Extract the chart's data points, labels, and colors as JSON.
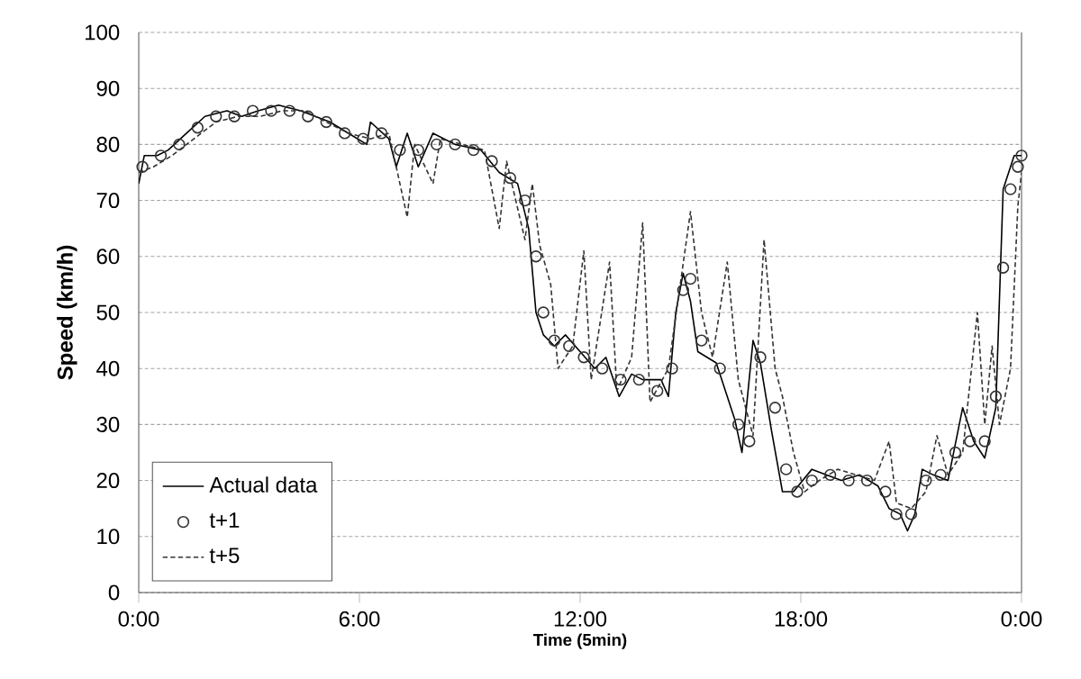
{
  "chart_data": {
    "type": "line",
    "xlabel": "Time (5min)",
    "ylabel": "Speed (km/h)",
    "xlim": [
      0,
      24
    ],
    "ylim": [
      0,
      100
    ],
    "xticks": [
      {
        "value": 0,
        "label": "0:00"
      },
      {
        "value": 6,
        "label": "6:00"
      },
      {
        "value": 12,
        "label": "12:00"
      },
      {
        "value": 18,
        "label": "18:00"
      },
      {
        "value": 24,
        "label": "0:00"
      }
    ],
    "yticks": [
      0,
      10,
      20,
      30,
      40,
      50,
      60,
      70,
      80,
      90,
      100
    ],
    "grid": "y",
    "legend": "bottom left",
    "series": [
      {
        "name": "Actual data",
        "color": "#000000",
        "line_style": "solid",
        "marker": "none",
        "x": [
          0,
          0.15,
          0.5,
          0.8,
          1.3,
          1.8,
          2.4,
          2.8,
          3.25,
          3.8,
          4.4,
          4.8,
          5.2,
          5.7,
          6.2,
          6.3,
          6.8,
          7.0,
          7.3,
          7.6,
          8.0,
          8.6,
          9.3,
          9.8,
          10.3,
          10.6,
          10.8,
          11.0,
          11.3,
          11.6,
          12.0,
          12.4,
          12.7,
          13.06,
          13.4,
          13.7,
          14.2,
          14.4,
          14.6,
          14.8,
          15.0,
          15.2,
          15.7,
          16.2,
          16.4,
          16.7,
          16.9,
          17.2,
          17.5,
          17.8,
          18.3,
          18.7,
          19.1,
          19.6,
          20.1,
          20.4,
          20.7,
          20.9,
          21.1,
          21.3,
          21.6,
          22.0,
          22.4,
          22.7,
          23.0,
          23.3,
          23.5,
          23.8,
          24
        ],
        "values": [
          73,
          78,
          78,
          79,
          82,
          85,
          86,
          85,
          86,
          87,
          86,
          85,
          84,
          82,
          80,
          84,
          81,
          76,
          82,
          76,
          82,
          80,
          79,
          75,
          73,
          65,
          50,
          46,
          44,
          46,
          43,
          40,
          42,
          35,
          39,
          38,
          38,
          35,
          50,
          57,
          52,
          43,
          41,
          31,
          25,
          45,
          41,
          29,
          18,
          18,
          22,
          21,
          20,
          21,
          19,
          15,
          14,
          11,
          14,
          22,
          21,
          20,
          33,
          27,
          24,
          33,
          72,
          78,
          78
        ]
      },
      {
        "name": "t+1",
        "type": "scatter",
        "color": "#333333",
        "marker": "circle",
        "x": [
          0.1,
          0.6,
          1.1,
          1.6,
          2.1,
          2.6,
          3.1,
          3.6,
          4.1,
          4.6,
          5.1,
          5.6,
          6.1,
          6.6,
          7.1,
          7.6,
          8.1,
          8.6,
          9.1,
          9.6,
          10.1,
          10.5,
          10.8,
          11.0,
          11.3,
          11.7,
          12.1,
          12.6,
          13.1,
          13.6,
          14.1,
          14.5,
          14.8,
          15.0,
          15.3,
          15.8,
          16.3,
          16.6,
          16.9,
          17.3,
          17.6,
          17.9,
          18.3,
          18.8,
          19.3,
          19.8,
          20.3,
          20.6,
          21.0,
          21.4,
          21.8,
          22.2,
          22.6,
          23.0,
          23.3,
          23.5,
          23.7,
          23.9,
          24
        ],
        "values": [
          76,
          78,
          80,
          83,
          85,
          85,
          86,
          86,
          86,
          85,
          84,
          82,
          81,
          82,
          79,
          79,
          80,
          80,
          79,
          77,
          74,
          70,
          60,
          50,
          45,
          44,
          42,
          40,
          38,
          38,
          36,
          40,
          54,
          56,
          45,
          40,
          30,
          27,
          42,
          33,
          22,
          18,
          20,
          21,
          20,
          20,
          18,
          14,
          14,
          20,
          21,
          25,
          27,
          27,
          35,
          58,
          72,
          76,
          78
        ]
      },
      {
        "name": "t+5",
        "color": "#333333",
        "line_style": "dashed",
        "marker": "none",
        "x": [
          0,
          0.4,
          0.9,
          1.5,
          2.1,
          2.7,
          3.3,
          3.9,
          4.5,
          5.1,
          5.7,
          6.3,
          6.8,
          7.3,
          7.5,
          8.0,
          8.2,
          8.8,
          9.4,
          9.8,
          10.0,
          10.5,
          10.7,
          10.9,
          11.2,
          11.4,
          11.8,
          12.1,
          12.3,
          12.8,
          13.0,
          13.4,
          13.7,
          13.9,
          14.4,
          15.0,
          15.3,
          15.6,
          16.0,
          16.3,
          16.7,
          17.0,
          17.3,
          17.5,
          17.8,
          18.1,
          18.5,
          19.0,
          19.5,
          20.0,
          20.4,
          20.6,
          21.0,
          21.4,
          21.7,
          22.0,
          22.4,
          22.8,
          23.0,
          23.2,
          23.4,
          23.7,
          23.9,
          24
        ],
        "values": [
          75,
          76,
          78,
          81,
          84,
          85,
          85,
          86,
          86,
          84,
          82,
          81,
          82,
          67,
          80,
          73,
          81,
          80,
          79,
          65,
          77,
          63,
          73,
          62,
          55,
          40,
          44,
          61,
          38,
          59,
          36,
          42,
          66,
          34,
          40,
          68,
          50,
          42,
          59,
          38,
          28,
          63,
          40,
          35,
          25,
          18,
          20,
          22,
          21,
          20,
          27,
          16,
          15,
          18,
          28,
          21,
          25,
          50,
          30,
          44,
          30,
          40,
          69,
          75
        ]
      }
    ]
  }
}
